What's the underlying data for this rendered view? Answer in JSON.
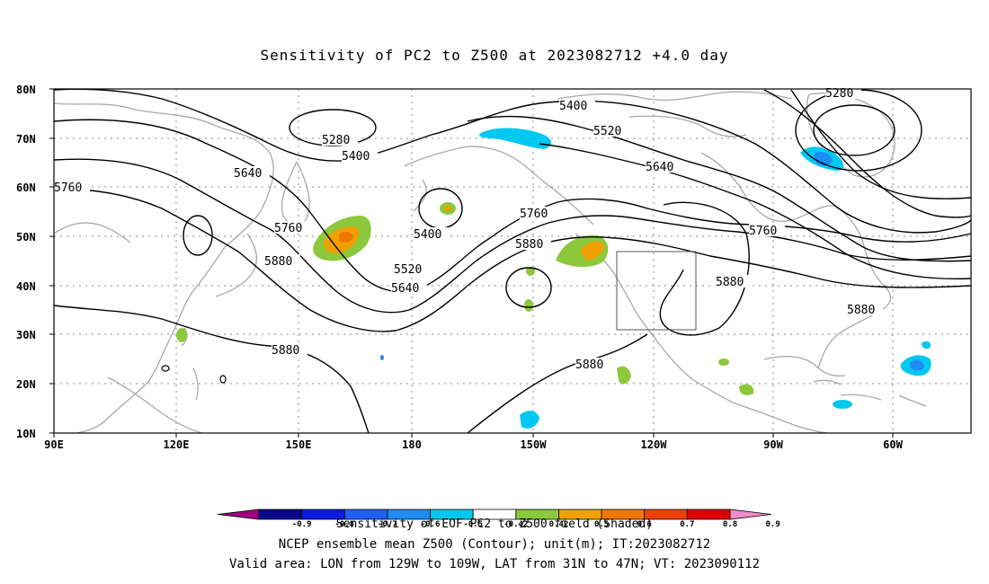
{
  "title": "Sensitivity of PC2 to Z500 at 2023082712 +4.0 day",
  "map": {
    "lat_labels": [
      "80N",
      "70N",
      "60N",
      "50N",
      "40N",
      "30N",
      "20N",
      "10N"
    ],
    "lon_labels": [
      "90E",
      "120E",
      "150E",
      "180",
      "150W",
      "120W",
      "90W",
      "60W"
    ],
    "contour_labels": [
      "5280",
      "5400",
      "5520",
      "5640",
      "5760",
      "5880"
    ]
  },
  "colorbar": {
    "levels": [
      "-0.9",
      "-0.8",
      "-0.7",
      "-0.6",
      "-0.5",
      "-0.42",
      "0.42",
      "0.5",
      "0.6",
      "0.7",
      "0.8",
      "0.9"
    ],
    "colors": [
      "#a0007f",
      "#08088c",
      "#0a1ae0",
      "#1e5ff5",
      "#1e8cf5",
      "#00c8f0",
      "#ffffff",
      "#8cc83c",
      "#f0a000",
      "#f07800",
      "#f04000",
      "#e00000",
      "#f08cc8"
    ]
  },
  "captions": {
    "shaded": "Sensitivity of EOF PC2 to Z500 field (Shaded)",
    "contour": "NCEP ensemble mean Z500 (Contour); unit(m); IT:2023082712",
    "valid": "Valid area: LON from 129W to 109W, LAT from 31N to 47N; VT: 2023090112"
  }
}
